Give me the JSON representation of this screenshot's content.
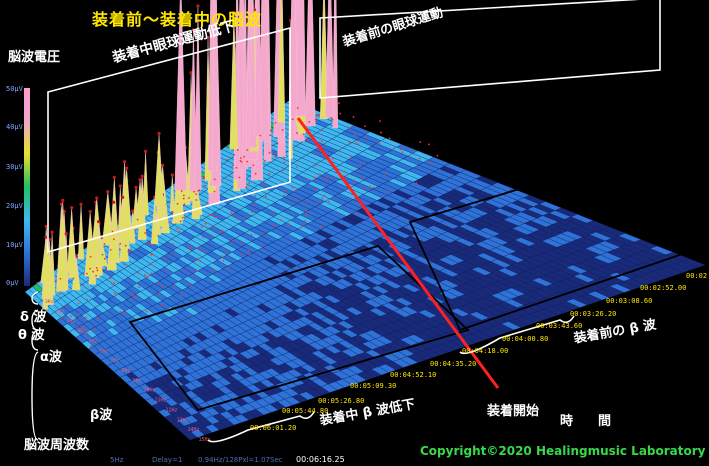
{
  "title": "装着前～装着中の脳波",
  "colors": {
    "title": "#ffe600",
    "copyright": "#39d84b",
    "annotation_line": "#ff2020",
    "box_outline": "#ffffff"
  },
  "chart_data": {
    "type": "3d-spectrogram-surface",
    "title": "装着前～装着中の脳波",
    "zlabel": "脳波電圧",
    "zticks": [
      "0μV",
      "10μV",
      "20μV",
      "30μV",
      "40μV",
      "50μV"
    ],
    "zlim": [
      0,
      50
    ],
    "xlabel": "時　間",
    "ylabel": "脳波周波数",
    "frequency_bands": [
      "δ 波",
      "θ 波",
      "α波",
      "β波"
    ],
    "frequency_ticks": [
      "1Hz",
      "2Hz",
      "3Hz",
      "4Hz",
      "5Hz",
      "6Hz",
      "7Hz",
      "8Hz",
      "9Hz",
      "10Hz",
      "11Hz",
      "12Hz",
      "13Hz",
      "14Hz",
      "15Hz"
    ],
    "time_ticks": [
      "00:06:01.20",
      "00:05:44.80",
      "00:05:26.80",
      "00:05:09.30",
      "00:04:52.10",
      "00:04:35.20",
      "00:04:18.00",
      "00:04:00.80",
      "00:03:43.60",
      "00:03:26.20",
      "00:03:08.60",
      "00:02:52.00",
      "00:02"
    ],
    "annotations": {
      "during_box": "装着中眼球運動低下",
      "before_box": "装着前の眼球運動",
      "start_line": "装着開始",
      "beta_during": "装着中 β 波低下",
      "beta_before": "装着前の β 波"
    },
    "colormap": [
      "#1a2a7a",
      "#2f72d8",
      "#3fb8f0",
      "#20c060",
      "#e8e030",
      "#f0a8c8",
      "#ff9cd0"
    ],
    "grid": true
  },
  "status": {
    "left": "5Hz",
    "delay": "Delay=1",
    "resolution": "0.94Hz/128Pxl=1.07Sec",
    "time": "00:06:16.25"
  },
  "copyright": "Copyright©2020 Healingmusic Laboratory"
}
